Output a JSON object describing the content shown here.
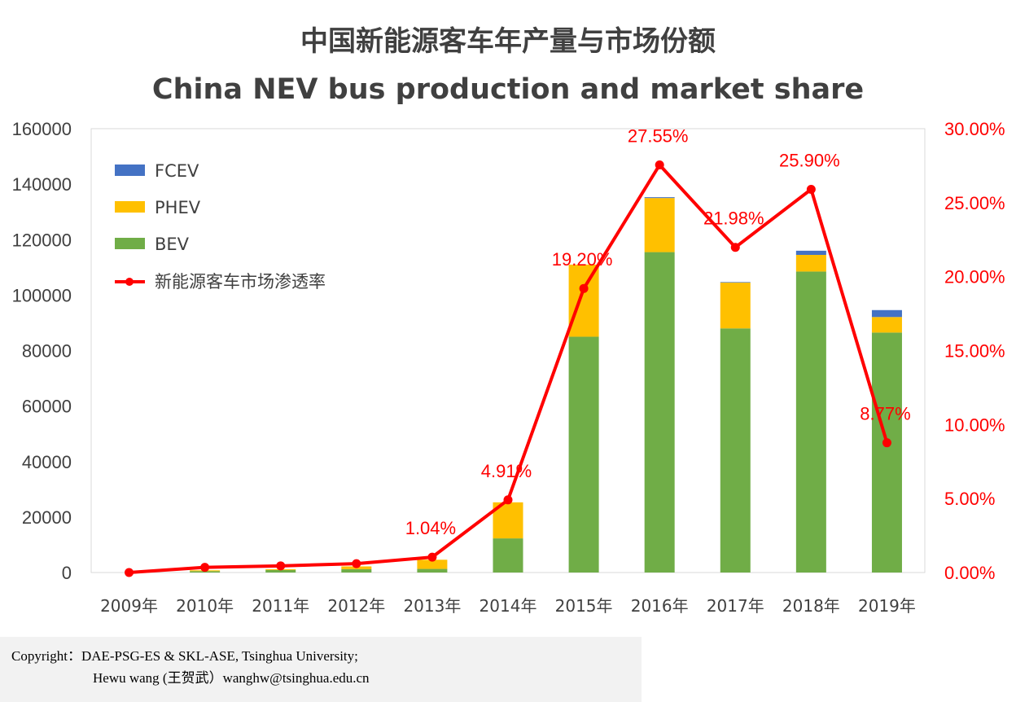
{
  "chart_data": {
    "type": "bar",
    "title": "中国新能源客车年产量与市场份额",
    "subtitle": "China NEV bus production and market share",
    "categories": [
      "2009年",
      "2010年",
      "2011年",
      "2012年",
      "2013年",
      "2014年",
      "2015年",
      "2016年",
      "2017年",
      "2018年",
      "2019年"
    ],
    "stacked": true,
    "series": [
      {
        "name": "BEV",
        "color": "#70ad47",
        "axis": "left",
        "values": [
          0,
          500,
          900,
          1200,
          1300,
          12300,
          85000,
          115500,
          88000,
          108500,
          86500
        ]
      },
      {
        "name": "PHEV",
        "color": "#ffc000",
        "axis": "left",
        "values": [
          0,
          300,
          300,
          1000,
          3300,
          13000,
          26000,
          19500,
          16500,
          6000,
          5600
        ]
      },
      {
        "name": "FCEV",
        "color": "#4472c4",
        "axis": "left",
        "values": [
          0,
          0,
          0,
          0,
          0,
          0,
          0,
          300,
          200,
          1500,
          2500
        ]
      },
      {
        "name": "新能源客车市场渗透率",
        "type": "line",
        "color": "#ff0000",
        "axis": "right",
        "values": [
          0.0,
          0.35,
          0.45,
          0.6,
          1.04,
          4.91,
          19.2,
          27.55,
          21.98,
          25.9,
          8.77
        ],
        "labels": [
          "",
          "",
          "",
          "",
          "1.04%",
          "4.91%",
          "19.20%",
          "27.55%",
          "21.98%",
          "25.90%",
          "8.77%"
        ]
      }
    ],
    "y_left": {
      "min": 0,
      "max": 160000,
      "ticks": [
        "0",
        "20000",
        "40000",
        "60000",
        "80000",
        "100000",
        "120000",
        "140000",
        "160000"
      ]
    },
    "y_right": {
      "min": 0,
      "max": 30,
      "ticks": [
        "0.00%",
        "5.00%",
        "10.00%",
        "15.00%",
        "20.00%",
        "25.00%",
        "30.00%"
      ]
    },
    "legend_position": "top-left",
    "legend": [
      "FCEV",
      "PHEV",
      "BEV",
      "新能源客车市场渗透率"
    ]
  },
  "copyright": {
    "line1": "Copyright：DAE-PSG-ES & SKL-ASE, Tsinghua University;",
    "line2": "Hewu wang (王贺武）wanghw@tsinghua.edu.cn"
  }
}
